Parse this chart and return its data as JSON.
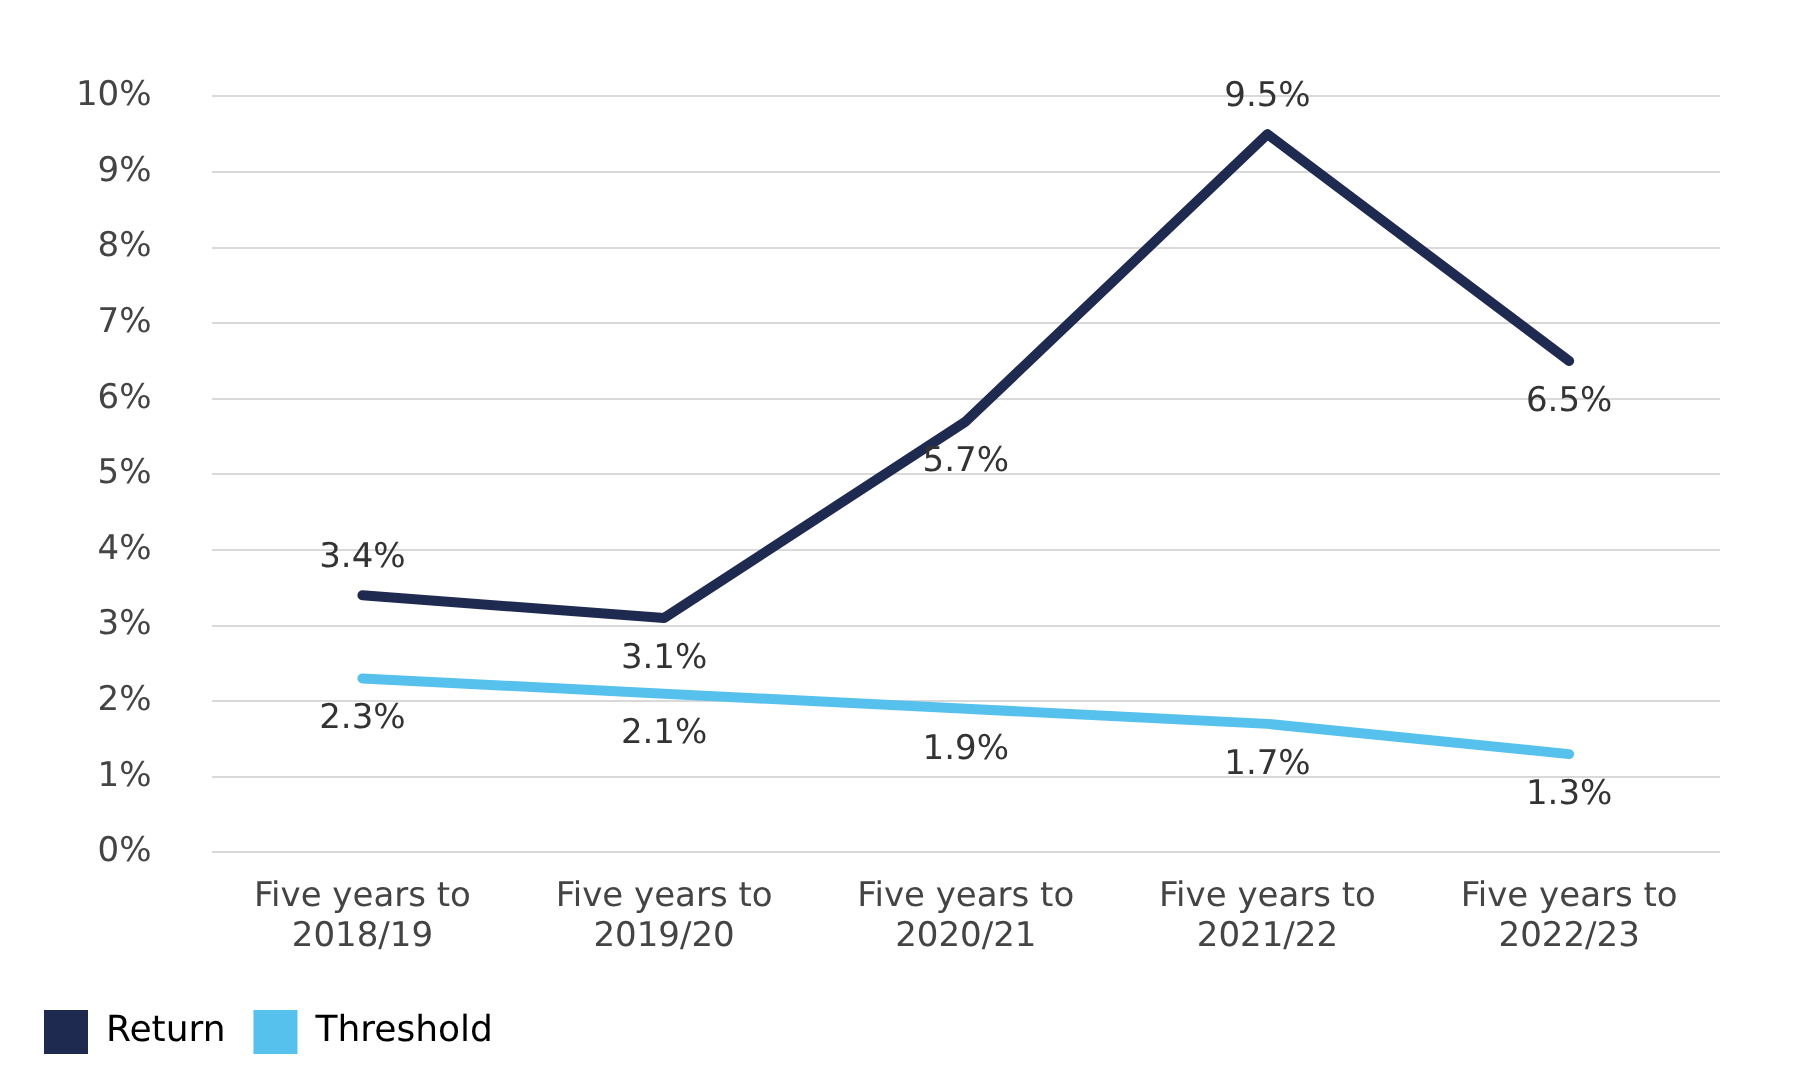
{
  "chart_data": {
    "type": "line",
    "categories": [
      "Five years to 2018/19",
      "Five years to 2019/20",
      "Five years to 2020/21",
      "Five years to 2021/22",
      "Five years to 2022/23"
    ],
    "series": [
      {
        "name": "Return",
        "color": "#1f2a50",
        "values": [
          3.4,
          3.1,
          5.7,
          9.5,
          6.5
        ],
        "value_labels": [
          "3.4%",
          "3.1%",
          "5.7%",
          "9.5%",
          "6.5%"
        ]
      },
      {
        "name": "Threshold",
        "color": "#56c1ec",
        "values": [
          2.3,
          2.1,
          1.9,
          1.7,
          1.3
        ],
        "value_labels": [
          "2.3%",
          "2.1%",
          "1.9%",
          "1.7%",
          "1.3%"
        ]
      }
    ],
    "ylim": [
      0,
      10
    ],
    "yticks": [
      {
        "value": 0,
        "label": "0%"
      },
      {
        "value": 1,
        "label": "1%"
      },
      {
        "value": 2,
        "label": "2%"
      },
      {
        "value": 3,
        "label": "3%"
      },
      {
        "value": 4,
        "label": "4%"
      },
      {
        "value": 5,
        "label": "5%"
      },
      {
        "value": 6,
        "label": "6%"
      },
      {
        "value": 7,
        "label": "7%"
      },
      {
        "value": 8,
        "label": "8%"
      },
      {
        "value": 9,
        "label": "9%"
      },
      {
        "value": 10,
        "label": "10%"
      }
    ],
    "grid": "y",
    "legend": "bottom left",
    "marker": "none",
    "line_style": "solid"
  }
}
